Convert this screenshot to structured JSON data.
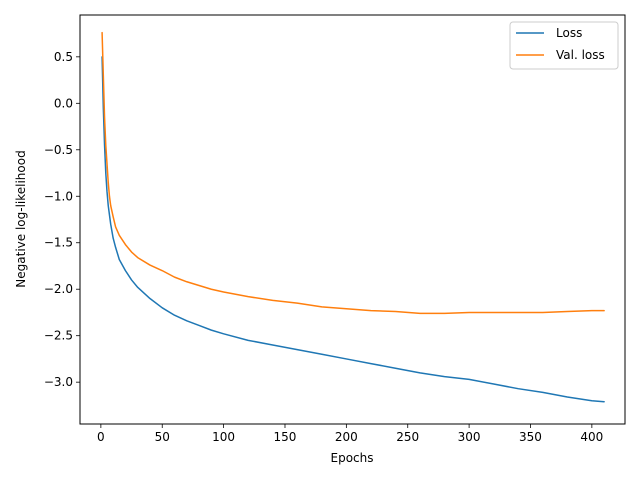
{
  "chart_data": {
    "type": "line",
    "xlabel": "Epochs",
    "ylabel": "Negative log-likelihood",
    "xlim": [
      -17,
      427
    ],
    "ylim": [
      -3.45,
      0.95
    ],
    "xticks": [
      0,
      50,
      100,
      150,
      200,
      250,
      300,
      350,
      400
    ],
    "yticks": [
      0.5,
      0.0,
      -0.5,
      -1.0,
      -1.5,
      -2.0,
      -2.5,
      -3.0
    ],
    "xtick_labels": [
      "0",
      "50",
      "100",
      "150",
      "200",
      "250",
      "300",
      "350",
      "400"
    ],
    "ytick_labels": [
      "0.5",
      "0.0",
      "−0.5",
      "−1.0",
      "−1.5",
      "−2.0",
      "−2.5",
      "−3.0"
    ],
    "legend_position": "top-right",
    "grid": false,
    "series": [
      {
        "name": "Loss",
        "color": "#1f77b4",
        "x": [
          1,
          2,
          3,
          4,
          5,
          6,
          7,
          8,
          10,
          12,
          15,
          20,
          25,
          30,
          40,
          50,
          60,
          70,
          80,
          90,
          100,
          120,
          140,
          160,
          180,
          200,
          220,
          240,
          260,
          280,
          300,
          320,
          340,
          360,
          380,
          400,
          410
        ],
        "y": [
          0.5,
          -0.05,
          -0.45,
          -0.75,
          -0.95,
          -1.1,
          -1.2,
          -1.3,
          -1.45,
          -1.55,
          -1.68,
          -1.8,
          -1.9,
          -1.98,
          -2.1,
          -2.2,
          -2.28,
          -2.34,
          -2.39,
          -2.44,
          -2.48,
          -2.55,
          -2.6,
          -2.65,
          -2.7,
          -2.75,
          -2.8,
          -2.85,
          -2.9,
          -2.94,
          -2.97,
          -3.02,
          -3.07,
          -3.11,
          -3.16,
          -3.2,
          -3.21
        ]
      },
      {
        "name": "Val. loss",
        "color": "#ff7f0e",
        "x": [
          1,
          2,
          3,
          4,
          5,
          6,
          7,
          8,
          10,
          12,
          15,
          20,
          25,
          30,
          40,
          50,
          60,
          70,
          80,
          90,
          100,
          120,
          140,
          160,
          180,
          200,
          220,
          240,
          260,
          280,
          300,
          320,
          340,
          360,
          380,
          400,
          410
        ],
        "y": [
          0.76,
          0.3,
          -0.15,
          -0.45,
          -0.65,
          -0.85,
          -1.0,
          -1.1,
          -1.22,
          -1.33,
          -1.42,
          -1.52,
          -1.6,
          -1.66,
          -1.74,
          -1.8,
          -1.87,
          -1.92,
          -1.96,
          -2.0,
          -2.03,
          -2.08,
          -2.12,
          -2.15,
          -2.19,
          -2.21,
          -2.23,
          -2.24,
          -2.26,
          -2.26,
          -2.25,
          -2.25,
          -2.25,
          -2.25,
          -2.24,
          -2.23,
          -2.23
        ]
      }
    ]
  }
}
